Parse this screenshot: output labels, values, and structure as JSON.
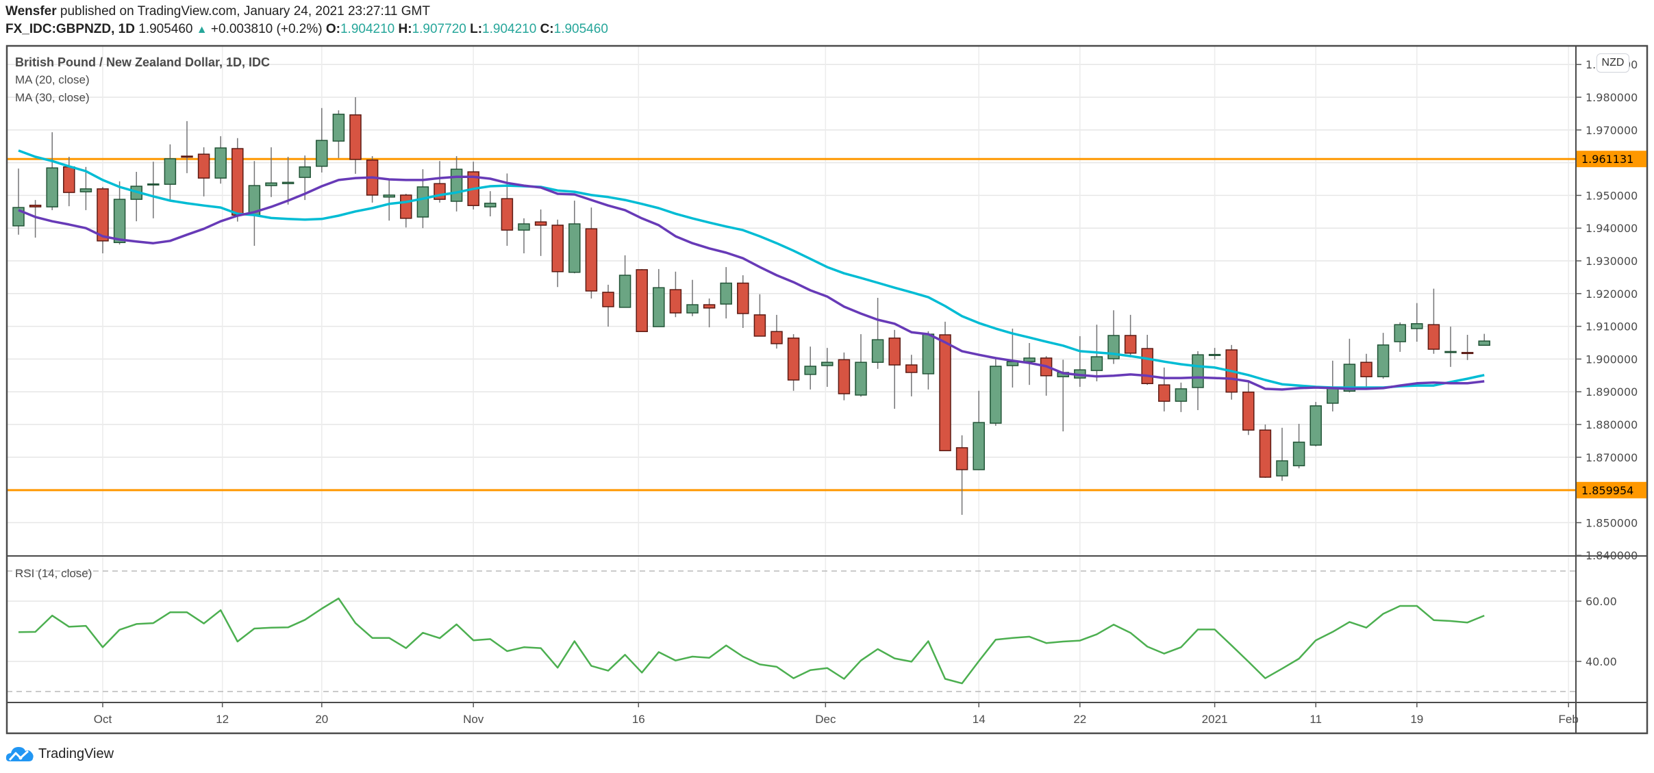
{
  "header": {
    "author": "Wensfer",
    "published_text": "published on TradingView.com, January 24, 2021 23:27:11 GMT",
    "symbol": "FX_IDC:GBPNZD, 1D",
    "last_price": "1.905460",
    "change_arrow": "▲",
    "change": "+0.003810 (+0.2%)",
    "open_label": "O:",
    "open": "1.904210",
    "high_label": "H:",
    "high": "1.907720",
    "low_label": "L:",
    "low": "1.904210",
    "close_label": "C:",
    "close": "1.905460"
  },
  "legend": {
    "title": "British Pound / New Zealand Dollar, 1D, IDC",
    "ma20": "MA (20, close)",
    "ma30": "MA (30, close)",
    "rsi": "RSI (14, close)"
  },
  "currency_badge": "NZD",
  "logo_text": "TradingView",
  "colors": {
    "up": "#6BA583",
    "up_border": "#225437",
    "down": "#D75442",
    "down_border": "#5B1A13",
    "wick": "#737375",
    "ma20": "#00BCD4",
    "ma30": "#673AB7",
    "rsi": "#4CAF50",
    "hline": "#FF9800",
    "value_text": "#26A69A"
  },
  "chart_data": {
    "type": "candlestick",
    "title": "British Pound / New Zealand Dollar, 1D, IDC",
    "ylim": [
      1.835,
      1.995
    ],
    "y_ticks": [
      "1.990000",
      "1.980000",
      "1.970000",
      "1.960000",
      "1.950000",
      "1.940000",
      "1.930000",
      "1.920000",
      "1.910000",
      "1.900000",
      "1.890000",
      "1.880000",
      "1.870000",
      "1.860000",
      "1.850000",
      "1.840000"
    ],
    "x_ticks": [
      {
        "label": "Oct",
        "bar": 5
      },
      {
        "label": "12",
        "bar": 12.1
      },
      {
        "label": "20",
        "bar": 18
      },
      {
        "label": "Nov",
        "bar": 27
      },
      {
        "label": "16",
        "bar": 36.8
      },
      {
        "label": "Dec",
        "bar": 47.9
      },
      {
        "label": "14",
        "bar": 57
      },
      {
        "label": "22",
        "bar": 63
      },
      {
        "label": "2021",
        "bar": 71
      },
      {
        "label": "11",
        "bar": 77
      },
      {
        "label": "19",
        "bar": 83
      },
      {
        "label": "Feb",
        "bar": 92
      }
    ],
    "horizontal_lines": [
      {
        "price": 1.961131,
        "label": "1.961131"
      },
      {
        "price": 1.859954,
        "label": "1.859954"
      }
    ],
    "ohlc": [
      [
        1.9407,
        1.9582,
        1.938,
        1.9463
      ],
      [
        1.947,
        1.9486,
        1.9371,
        1.9465
      ],
      [
        1.9465,
        1.9693,
        1.9455,
        1.9584
      ],
      [
        1.9587,
        1.9618,
        1.9467,
        1.9509
      ],
      [
        1.9511,
        1.9587,
        1.9455,
        1.952
      ],
      [
        1.952,
        1.9526,
        1.9323,
        1.9361
      ],
      [
        1.9356,
        1.9543,
        1.935,
        1.9488
      ],
      [
        1.9488,
        1.9572,
        1.9421,
        1.9528
      ],
      [
        1.9533,
        1.9603,
        1.943,
        1.9535
      ],
      [
        1.9534,
        1.9656,
        1.9484,
        1.9612
      ],
      [
        1.962,
        1.9727,
        1.9568,
        1.9617
      ],
      [
        1.9626,
        1.9647,
        1.9497,
        1.9553
      ],
      [
        1.9553,
        1.9681,
        1.9536,
        1.9645
      ],
      [
        1.9643,
        1.9675,
        1.942,
        1.944
      ],
      [
        1.944,
        1.9605,
        1.9346,
        1.953
      ],
      [
        1.953,
        1.9647,
        1.9495,
        1.9538
      ],
      [
        1.9536,
        1.9618,
        1.9472,
        1.954
      ],
      [
        1.9555,
        1.9622,
        1.9486,
        1.9587
      ],
      [
        1.9589,
        1.9767,
        1.957,
        1.9668
      ],
      [
        1.9666,
        1.976,
        1.9614,
        1.9748
      ],
      [
        1.9746,
        1.98,
        1.9566,
        1.961
      ],
      [
        1.9608,
        1.962,
        1.9478,
        1.9501
      ],
      [
        1.9495,
        1.9551,
        1.9423,
        1.9501
      ],
      [
        1.9501,
        1.9505,
        1.9402,
        1.943
      ],
      [
        1.9434,
        1.958,
        1.94,
        1.9526
      ],
      [
        1.9536,
        1.9605,
        1.9478,
        1.9488
      ],
      [
        1.9482,
        1.962,
        1.9451,
        1.958
      ],
      [
        1.9572,
        1.9603,
        1.9457,
        1.9469
      ],
      [
        1.9465,
        1.9513,
        1.9436,
        1.9476
      ],
      [
        1.949,
        1.9567,
        1.9346,
        1.9394
      ],
      [
        1.9394,
        1.943,
        1.9323,
        1.9413
      ],
      [
        1.9419,
        1.9457,
        1.9315,
        1.9409
      ],
      [
        1.9409,
        1.9426,
        1.922,
        1.9267
      ],
      [
        1.9265,
        1.9484,
        1.9262,
        1.9413
      ],
      [
        1.9398,
        1.9463,
        1.9185,
        1.9208
      ],
      [
        1.9204,
        1.9227,
        1.9099,
        1.916
      ],
      [
        1.9158,
        1.9317,
        1.9158,
        1.9256
      ],
      [
        1.9273,
        1.9275,
        1.9083,
        1.9084
      ],
      [
        1.9099,
        1.9275,
        1.9099,
        1.9218
      ],
      [
        1.9212,
        1.9267,
        1.9128,
        1.9141
      ],
      [
        1.9141,
        1.9242,
        1.9131,
        1.9166
      ],
      [
        1.9166,
        1.9185,
        1.9097,
        1.9156
      ],
      [
        1.9168,
        1.9281,
        1.9124,
        1.9232
      ],
      [
        1.9232,
        1.9256,
        1.9095,
        1.9139
      ],
      [
        1.9135,
        1.9198,
        1.9069,
        1.907
      ],
      [
        1.9084,
        1.9135,
        1.9032,
        1.9047
      ],
      [
        1.9064,
        1.9076,
        1.8903,
        1.8936
      ],
      [
        1.8953,
        1.9038,
        1.8907,
        1.8978
      ],
      [
        1.898,
        1.9034,
        1.8915,
        1.899
      ],
      [
        1.8998,
        1.902,
        1.8874,
        1.8894
      ],
      [
        1.889,
        1.9076,
        1.8885,
        1.899
      ],
      [
        1.899,
        1.9187,
        1.897,
        1.9059
      ],
      [
        1.9064,
        1.9089,
        1.8848,
        1.8982
      ],
      [
        1.8982,
        1.9013,
        1.8886,
        1.8959
      ],
      [
        1.8955,
        1.9085,
        1.8907,
        1.9076
      ],
      [
        1.9074,
        1.9114,
        1.872,
        1.872
      ],
      [
        1.8729,
        1.8767,
        1.8524,
        1.8662
      ],
      [
        1.8662,
        1.8903,
        1.8662,
        1.8806
      ],
      [
        1.8804,
        1.9003,
        1.8796,
        1.8978
      ],
      [
        1.898,
        1.9093,
        1.8913,
        1.8992
      ],
      [
        1.8992,
        1.9049,
        1.8921,
        1.9003
      ],
      [
        1.9003,
        1.9009,
        1.8888,
        1.8949
      ],
      [
        1.8946,
        1.8998,
        1.8779,
        1.8959
      ],
      [
        1.8942,
        1.907,
        1.8915,
        1.8967
      ],
      [
        1.8965,
        1.9105,
        1.8932,
        1.9007
      ],
      [
        1.9001,
        1.9149,
        1.8985,
        1.9072
      ],
      [
        1.9072,
        1.9135,
        1.9005,
        1.9018
      ],
      [
        1.9032,
        1.9074,
        1.8921,
        1.8925
      ],
      [
        1.8921,
        1.8974,
        1.884,
        1.8871
      ],
      [
        1.8871,
        1.8928,
        1.8838,
        1.8909
      ],
      [
        1.8913,
        1.9024,
        1.8844,
        1.9013
      ],
      [
        1.9012,
        1.9034,
        1.8999,
        1.9014
      ],
      [
        1.9028,
        1.9043,
        1.8876,
        1.8899
      ],
      [
        1.8899,
        1.8934,
        1.8768,
        1.8783
      ],
      [
        1.8783,
        1.88,
        1.8637,
        1.8639
      ],
      [
        1.8643,
        1.879,
        1.8628,
        1.8689
      ],
      [
        1.8674,
        1.8802,
        1.8666,
        1.8746
      ],
      [
        1.8737,
        1.8869,
        1.8733,
        1.8857
      ],
      [
        1.8865,
        1.8995,
        1.884,
        1.8913
      ],
      [
        1.8902,
        1.9062,
        1.8898,
        1.8984
      ],
      [
        1.899,
        1.9016,
        1.8915,
        1.8946
      ],
      [
        1.8946,
        1.908,
        1.894,
        1.9043
      ],
      [
        1.9053,
        1.9112,
        1.9022,
        1.9105
      ],
      [
        1.9093,
        1.9171,
        1.9053,
        1.9108
      ],
      [
        1.9105,
        1.9215,
        1.9016,
        1.903
      ],
      [
        1.9021,
        1.9099,
        1.8976,
        1.9023
      ],
      [
        1.902,
        1.9074,
        1.8997,
        1.9017
      ],
      [
        1.9042,
        1.9077,
        1.9042,
        1.9055
      ]
    ],
    "series": [
      {
        "name": "MA (20, close)",
        "color_key": "ma20",
        "values": [
          1.9637,
          1.9618,
          1.9605,
          1.9589,
          1.9574,
          1.9547,
          1.9526,
          1.9511,
          1.9497,
          1.9484,
          1.9476,
          1.9469,
          1.9463,
          1.9444,
          1.944,
          1.9431,
          1.9428,
          1.9426,
          1.9428,
          1.9438,
          1.9451,
          1.9461,
          1.9474,
          1.948,
          1.949,
          1.9501,
          1.9509,
          1.952,
          1.9528,
          1.953,
          1.9528,
          1.9526,
          1.9515,
          1.9511,
          1.9501,
          1.9495,
          1.9486,
          1.9474,
          1.9461,
          1.9444,
          1.943,
          1.9417,
          1.9405,
          1.9394,
          1.9375,
          1.9354,
          1.9331,
          1.9306,
          1.9281,
          1.9262,
          1.9248,
          1.9233,
          1.9218,
          1.9204,
          1.9189,
          1.9162,
          1.9131,
          1.911,
          1.9093,
          1.9078,
          1.9066,
          1.9053,
          1.9041,
          1.9024,
          1.902,
          1.9016,
          1.9009,
          1.9001,
          1.8992,
          1.8984,
          1.8978,
          1.8974,
          1.8963,
          1.8951,
          1.8936,
          1.8923,
          1.8919,
          1.8915,
          1.8913,
          1.8913,
          1.8913,
          1.8913,
          1.8917,
          1.8919,
          1.8919,
          1.893,
          1.894,
          1.8951
        ]
      },
      {
        "name": "MA (30, close)",
        "color_key": "ma30",
        "values": [
          1.9455,
          1.9434,
          1.9421,
          1.9411,
          1.94,
          1.9375,
          1.9365,
          1.9359,
          1.9354,
          1.9361,
          1.938,
          1.9398,
          1.9421,
          1.9438,
          1.9449,
          1.9465,
          1.9484,
          1.9505,
          1.9528,
          1.9547,
          1.9553,
          1.9555,
          1.9549,
          1.9547,
          1.9547,
          1.9553,
          1.9557,
          1.9557,
          1.9551,
          1.9538,
          1.953,
          1.9524,
          1.9505,
          1.9503,
          1.9486,
          1.9469,
          1.9455,
          1.943,
          1.9409,
          1.9375,
          1.9354,
          1.9338,
          1.9325,
          1.9308,
          1.9281,
          1.9256,
          1.9235,
          1.921,
          1.9191,
          1.916,
          1.9139,
          1.912,
          1.9108,
          1.9082,
          1.9076,
          1.9051,
          1.9024,
          1.9013,
          1.9003,
          1.8995,
          1.8988,
          1.8978,
          1.8957,
          1.8951,
          1.8947,
          1.8949,
          1.8953,
          1.8949,
          1.8942,
          1.8942,
          1.8944,
          1.8942,
          1.894,
          1.8932,
          1.8909,
          1.8907,
          1.8911,
          1.8913,
          1.8911,
          1.8909,
          1.8909,
          1.8911,
          1.8919,
          1.8926,
          1.8928,
          1.8926,
          1.8926,
          1.8932
        ]
      }
    ],
    "rsi": {
      "name": "RSI (14, close)",
      "ylim": [
        26,
        76
      ],
      "y_ticks": [
        "60.00",
        "40.00"
      ],
      "bands": [
        70,
        30
      ],
      "values": [
        49.7,
        49.8,
        55.2,
        51.5,
        51.8,
        44.7,
        50.5,
        52.4,
        52.7,
        56.3,
        56.3,
        52.6,
        57.0,
        46.6,
        50.9,
        51.2,
        51.3,
        53.8,
        57.5,
        60.9,
        52.7,
        47.8,
        47.8,
        44.4,
        49.5,
        47.7,
        52.3,
        47.0,
        47.4,
        43.4,
        44.7,
        44.4,
        37.9,
        46.7,
        38.5,
        36.9,
        42.2,
        36.3,
        43.1,
        40.3,
        41.6,
        41.2,
        45.3,
        41.6,
        39.0,
        38.2,
        34.4,
        37.1,
        37.8,
        34.2,
        40.3,
        44.1,
        41.0,
        39.9,
        46.7,
        34.2,
        32.7,
        40.1,
        47.2,
        47.8,
        48.2,
        46.1,
        46.6,
        46.9,
        49.0,
        52.2,
        49.5,
        44.9,
        42.6,
        44.7,
        50.6,
        50.6,
        45.3,
        39.9,
        34.4,
        37.6,
        40.9,
        47.0,
        49.8,
        53.1,
        51.2,
        55.8,
        58.4,
        58.4,
        53.7,
        53.4,
        52.9,
        55.2
      ]
    }
  }
}
